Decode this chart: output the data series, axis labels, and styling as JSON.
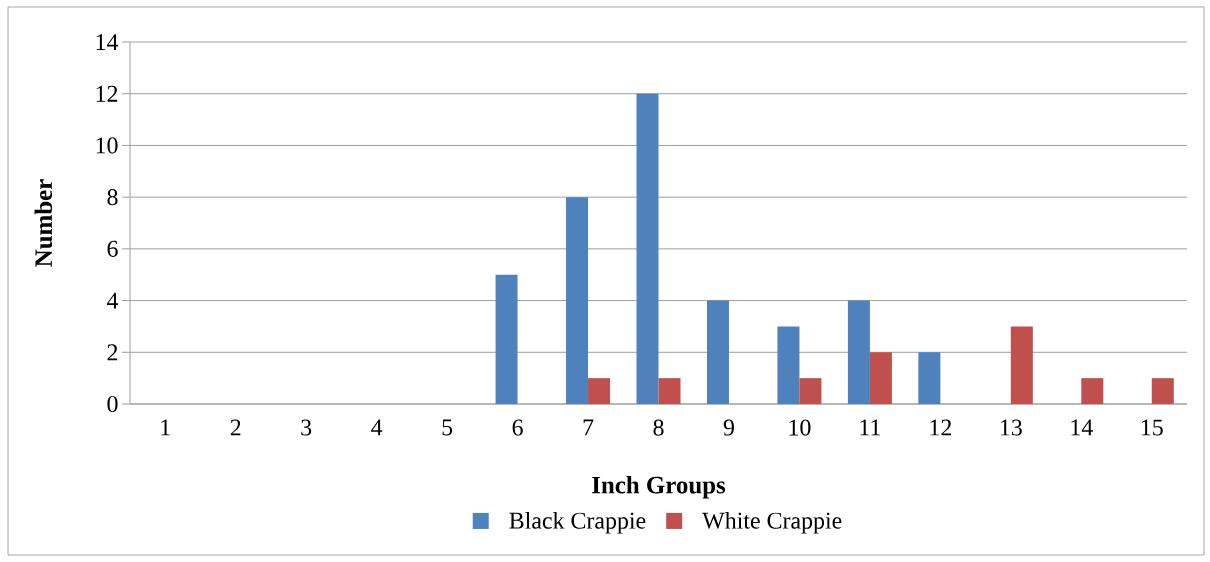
{
  "chart_data": {
    "type": "bar",
    "xlabel": "Inch Groups",
    "ylabel": "Number",
    "categories": [
      "1",
      "2",
      "3",
      "4",
      "5",
      "6",
      "7",
      "8",
      "9",
      "10",
      "11",
      "12",
      "13",
      "14",
      "15"
    ],
    "series": [
      {
        "name": "Black Crappie",
        "color": "#4f81bd",
        "values": [
          null,
          null,
          null,
          null,
          null,
          5,
          8,
          12,
          4,
          3,
          4,
          2,
          null,
          null,
          null
        ]
      },
      {
        "name": "White Crappie",
        "color": "#c0504d",
        "values": [
          null,
          null,
          null,
          null,
          null,
          null,
          1,
          1,
          null,
          1,
          2,
          null,
          3,
          1,
          1
        ]
      }
    ],
    "ylim": [
      0,
      14
    ],
    "yticks": [
      0,
      2,
      4,
      6,
      8,
      10,
      12,
      14
    ],
    "grid": "y",
    "legend": "bottom"
  }
}
